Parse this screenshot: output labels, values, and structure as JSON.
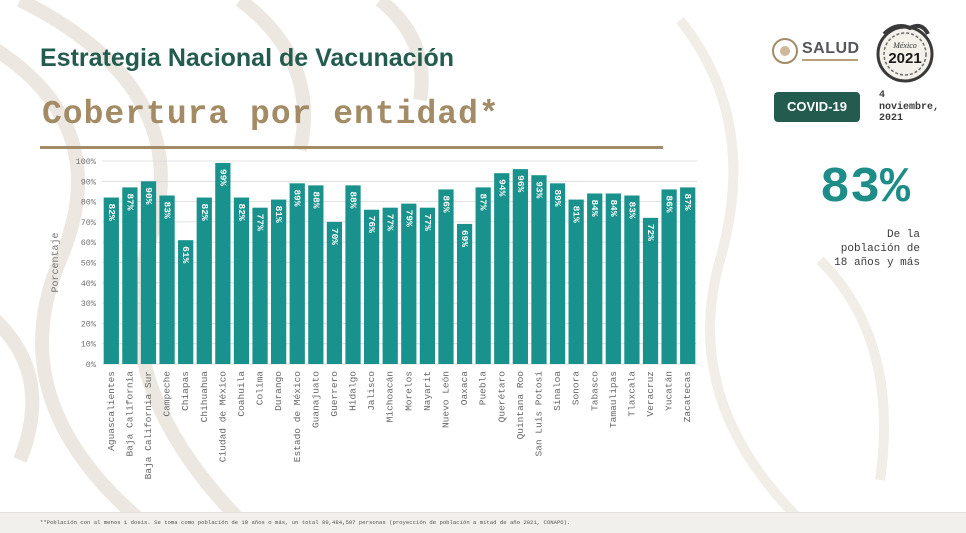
{
  "header": {
    "title": "Estrategia Nacional de Vacunación",
    "subtitle": "Cobertura por entidad*"
  },
  "logos": {
    "salud": "SALUD",
    "seal_line1": "México",
    "seal_line2": "2021"
  },
  "badge": {
    "label": "COVID-19"
  },
  "date": {
    "text": "4\nnoviembre,\n2021"
  },
  "summary": {
    "value": "83%",
    "caption": "De la\npoblación de\n18 años y más"
  },
  "footnote": "**Población con al menos 1 dosis. Se toma como población de 18 años o más, un total 89,484,507 personas (proyección de población a mitad de año 2021, CONAPO).",
  "colors": {
    "bar": "#19918c",
    "title": "#235b4e",
    "accent_gold": "#a38b66",
    "big_number": "#1e8d88"
  },
  "chart_data": {
    "type": "bar",
    "ylabel": "Porcentaje",
    "xlabel": "",
    "ylim": [
      0,
      100
    ],
    "yticks": [
      "0%",
      "10%",
      "20%",
      "30%",
      "40%",
      "50%",
      "60%",
      "70%",
      "80%",
      "90%",
      "100%"
    ],
    "grid": true,
    "categories": [
      "Aguascalientes",
      "Baja California",
      "Baja California Sur",
      "Campeche",
      "Chiapas",
      "Chihuahua",
      "Ciudad de México",
      "Coahuila",
      "Colima",
      "Durango",
      "Estado de México",
      "Guanajuato",
      "Guerrero",
      "Hidalgo",
      "Jalisco",
      "Michoacán",
      "Morelos",
      "Nayarit",
      "Nuevo León",
      "Oaxaca",
      "Puebla",
      "Querétaro",
      "Quintana Roo",
      "San Luis Potosí",
      "Sinaloa",
      "Sonora",
      "Tabasco",
      "Tamaulipas",
      "Tlaxcala",
      "Veracruz",
      "Yucatán",
      "Zacatecas"
    ],
    "values": [
      82,
      87,
      90,
      83,
      61,
      82,
      99,
      82,
      77,
      81,
      89,
      88,
      70,
      88,
      76,
      77,
      79,
      77,
      86,
      69,
      87,
      94,
      96,
      93,
      89,
      81,
      84,
      84,
      83,
      72,
      86,
      87
    ],
    "data_labels": [
      "82%",
      "87%",
      "90%",
      "83%",
      "61%",
      "82%",
      "99%",
      "82%",
      "77%",
      "81%",
      "89%",
      "88%",
      "70%",
      "88%",
      "76%",
      "77%",
      "79%",
      "77%",
      "86%",
      "69%",
      "87%",
      "94%",
      "96%",
      "93%",
      "89%",
      "81%",
      "84%",
      "84%",
      "83%",
      "72%",
      "86%",
      "87%"
    ]
  }
}
